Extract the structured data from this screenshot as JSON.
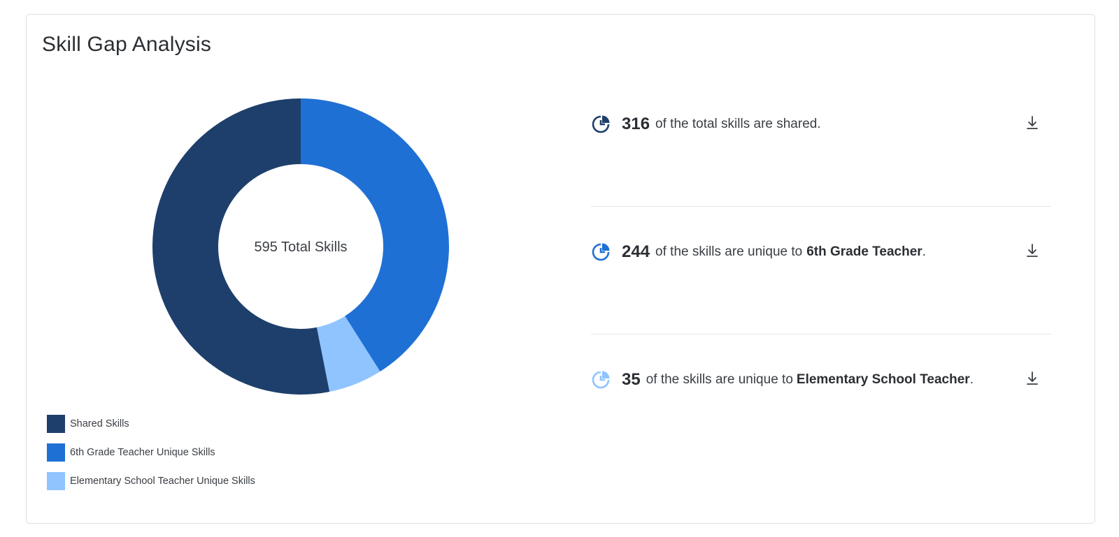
{
  "title": "Skill Gap Analysis",
  "center_label": "595 Total Skills",
  "colors": {
    "shared": "#1e3f6b",
    "sixth": "#1f70d4",
    "elementary": "#8fc4ff"
  },
  "legend": [
    {
      "label": "Shared Skills",
      "color": "#1e3f6b"
    },
    {
      "label": "6th Grade Teacher Unique Skills",
      "color": "#1f70d4"
    },
    {
      "label": "Elementary School Teacher Unique Skills",
      "color": "#8fc4ff"
    }
  ],
  "stats": [
    {
      "number": "316",
      "text": "of the total skills are shared.",
      "role": "",
      "period": "",
      "icon": "pie-chart-icon",
      "color": "#1e3f6b"
    },
    {
      "number": "244",
      "text": "of the skills are unique to",
      "role": "6th Grade Teacher",
      "period": ".",
      "icon": "pie-chart-icon",
      "color": "#1f70d4"
    },
    {
      "number": "35",
      "text": "of the skills are unique to",
      "role": "Elementary School Teacher",
      "period": ".",
      "icon": "pie-chart-icon",
      "color": "#8fc4ff"
    }
  ],
  "chart_data": {
    "type": "pie",
    "title": "Skill Gap Analysis",
    "center_label": "595 Total Skills",
    "categories": [
      "6th Grade Teacher Unique Skills",
      "Elementary School Teacher Unique Skills",
      "Shared Skills"
    ],
    "values": [
      244,
      35,
      316
    ],
    "colors": [
      "#1f70d4",
      "#8fc4ff",
      "#1e3f6b"
    ],
    "total": 595,
    "legend_position": "bottom-left"
  }
}
